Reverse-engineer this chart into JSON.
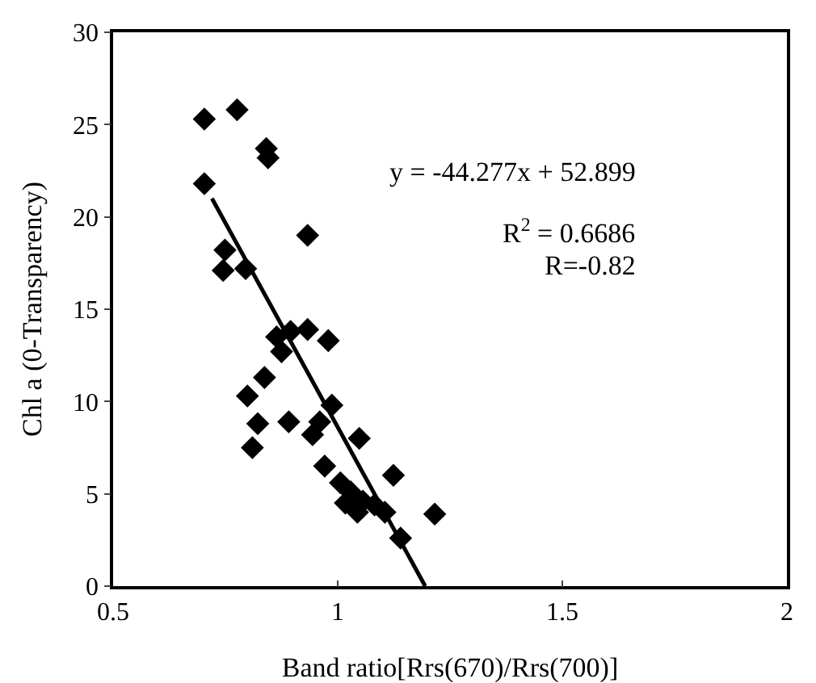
{
  "chart_data": {
    "type": "scatter",
    "xlabel": "Band ratio[Rrs(670)/Rrs(700)]",
    "ylabel": "Chl a (0-Transparency)",
    "xlim": [
      0.5,
      2
    ],
    "xticks": [
      0.5,
      1,
      1.5,
      2
    ],
    "ylim": [
      0,
      30
    ],
    "yticks": [
      0,
      5,
      10,
      15,
      20,
      25,
      30
    ],
    "grid": false,
    "annotations": [
      "y = -44.277x + 52.899",
      "R$^{2}$ = 0.6686",
      "R=-0.82"
    ],
    "series": [
      {
        "color": "#000000",
        "marker": "diamond",
        "x": [
          0.703,
          0.776,
          0.841,
          0.845,
          0.703,
          0.933,
          0.749,
          0.745,
          0.795,
          0.864,
          0.895,
          0.933,
          0.979,
          0.875,
          0.837,
          0.799,
          0.822,
          0.81,
          0.891,
          0.987,
          0.96,
          0.944,
          1.048,
          0.971,
          1.124,
          1.006,
          1.029,
          1.017,
          1.056,
          1.082,
          1.105,
          1.044,
          1.14,
          1.216
        ],
        "values": [
          25.3,
          25.8,
          23.7,
          23.2,
          21.8,
          19.0,
          18.2,
          17.1,
          17.2,
          13.5,
          13.8,
          13.9,
          13.3,
          12.7,
          11.3,
          10.3,
          8.8,
          7.5,
          8.9,
          9.8,
          8.9,
          8.2,
          8.0,
          6.5,
          6.0,
          5.6,
          5.1,
          4.5,
          4.6,
          4.4,
          4.0,
          4.0,
          2.6,
          3.9
        ]
      },
      {
        "type": "line",
        "color": "#000000",
        "x": [
          0.72,
          1.1947
        ],
        "values": [
          21.0,
          0
        ]
      }
    ]
  }
}
